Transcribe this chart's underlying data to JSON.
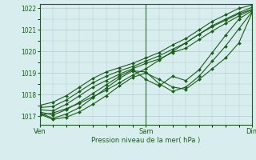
{
  "title": "",
  "xlabel": "Pression niveau de la mer( hPa )",
  "ylabel": "",
  "bg_color": "#d8eeee",
  "grid_color": "#b0cccc",
  "line_color": "#1a5c1a",
  "ylim": [
    1016.6,
    1022.2
  ],
  "xlim": [
    0,
    96
  ],
  "yticks": [
    1017,
    1018,
    1019,
    1020,
    1021,
    1022
  ],
  "xticks": [
    0,
    48,
    96
  ],
  "xtick_labels": [
    "Ven",
    "Sam",
    "Dim"
  ],
  "lines": [
    {
      "x": [
        0,
        6,
        12,
        18,
        24,
        30,
        36,
        42,
        48,
        54,
        60,
        66,
        72,
        78,
        84,
        90,
        96
      ],
      "y": [
        1017.05,
        1017.15,
        1017.35,
        1017.6,
        1017.9,
        1018.2,
        1018.55,
        1018.9,
        1019.2,
        1019.6,
        1020.0,
        1020.4,
        1020.8,
        1021.15,
        1021.45,
        1021.75,
        1021.95
      ]
    },
    {
      "x": [
        0,
        6,
        12,
        18,
        24,
        30,
        36,
        42,
        48,
        54,
        60,
        66,
        72,
        78,
        84,
        90,
        96
      ],
      "y": [
        1017.1,
        1016.85,
        1016.95,
        1017.2,
        1017.55,
        1017.95,
        1018.4,
        1018.8,
        1019.0,
        1018.7,
        1018.35,
        1018.25,
        1018.7,
        1019.2,
        1019.7,
        1020.4,
        1021.8
      ]
    },
    {
      "x": [
        0,
        6,
        12,
        18,
        24,
        30,
        36,
        42,
        48,
        54,
        60,
        66,
        72,
        78,
        84,
        90,
        96
      ],
      "y": [
        1017.15,
        1016.9,
        1017.1,
        1017.4,
        1017.85,
        1018.3,
        1018.75,
        1019.1,
        1019.05,
        1018.5,
        1018.15,
        1018.35,
        1018.85,
        1019.55,
        1020.25,
        1021.05,
        1021.85
      ]
    },
    {
      "x": [
        0,
        6,
        12,
        18,
        24,
        30,
        36,
        42,
        48,
        54,
        60,
        66,
        72,
        78,
        84,
        90,
        96
      ],
      "y": [
        1017.2,
        1017.05,
        1017.3,
        1017.65,
        1018.05,
        1018.45,
        1018.85,
        1019.15,
        1018.7,
        1018.4,
        1018.85,
        1018.65,
        1019.15,
        1019.95,
        1020.75,
        1021.5,
        1021.9
      ]
    },
    {
      "x": [
        0,
        6,
        12,
        18,
        24,
        30,
        36,
        42,
        48,
        54,
        60,
        66,
        72,
        78,
        84,
        90,
        96
      ],
      "y": [
        1017.3,
        1017.25,
        1017.55,
        1017.95,
        1018.35,
        1018.65,
        1018.95,
        1019.2,
        1019.45,
        1019.65,
        1019.95,
        1020.15,
        1020.55,
        1020.95,
        1021.3,
        1021.65,
        1021.95
      ]
    },
    {
      "x": [
        0,
        6,
        12,
        18,
        24,
        30,
        36,
        42,
        48,
        54,
        60,
        66,
        72,
        78,
        84,
        90,
        96
      ],
      "y": [
        1017.4,
        1017.45,
        1017.75,
        1018.15,
        1018.55,
        1018.85,
        1019.1,
        1019.3,
        1019.55,
        1019.8,
        1020.1,
        1020.4,
        1020.8,
        1021.2,
        1021.5,
        1021.8,
        1022.05
      ]
    },
    {
      "x": [
        0,
        6,
        12,
        18,
        24,
        30,
        36,
        42,
        48,
        54,
        60,
        66,
        72,
        78,
        84,
        90,
        96
      ],
      "y": [
        1017.5,
        1017.65,
        1017.95,
        1018.35,
        1018.75,
        1019.05,
        1019.25,
        1019.45,
        1019.7,
        1019.95,
        1020.3,
        1020.6,
        1021.0,
        1021.4,
        1021.7,
        1022.0,
        1022.15
      ]
    }
  ]
}
